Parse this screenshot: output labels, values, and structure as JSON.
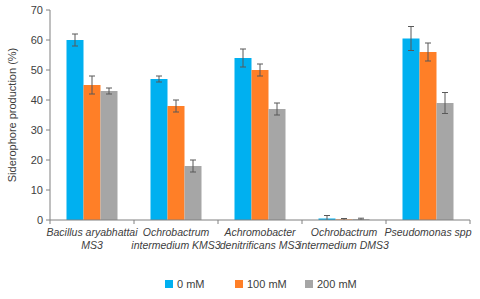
{
  "chart_data": {
    "type": "bar",
    "y_label": "Siderophore production (%)",
    "categories": [
      "Bacillus aryabhattai MS3",
      "Ochrobactrum intermedium KMS3",
      "Achromobacter denitrificans MS3",
      "Ochrobactrum intermedium DMS3",
      "Pseudomonas spp"
    ],
    "series": [
      {
        "name": "0 mM",
        "color": "#00b0f0",
        "values": [
          60,
          47,
          54,
          0.5,
          60.5
        ],
        "errors": [
          2,
          1,
          3,
          1,
          4
        ]
      },
      {
        "name": "100 mM",
        "color": "#ff7f27",
        "values": [
          45,
          38,
          50,
          0.2,
          56
        ],
        "errors": [
          3,
          2,
          2,
          0.3,
          3
        ]
      },
      {
        "name": "200 mM",
        "color": "#a6a6a6",
        "values": [
          43,
          18,
          37,
          0.3,
          39
        ],
        "errors": [
          1,
          2,
          2,
          0.3,
          3.5
        ]
      }
    ],
    "ylim": [
      0,
      70
    ],
    "yticks": [
      0,
      10,
      20,
      30,
      40,
      50,
      60,
      70
    ],
    "grid": false,
    "legend": "bottom"
  }
}
